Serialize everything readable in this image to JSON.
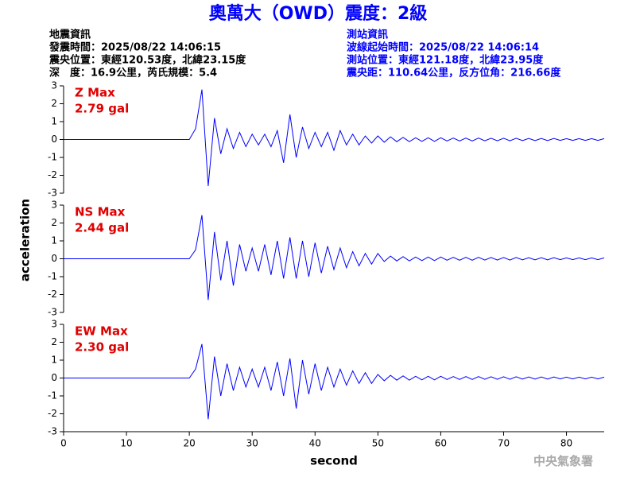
{
  "header": {
    "title": "奧萬大（OWD）震度：2級",
    "left": [
      "地震資訊",
      "發震時間：2025/08/22 14:06:15",
      "震央位置：東經120.53度，北緯23.15度",
      "深　度：16.9公里，芮氏規模：5.4"
    ],
    "right": [
      "測站資訊",
      "波線起始時間：2025/08/22 14:06:14",
      "測站位置：東經121.18度，北緯23.95度",
      "震央距：110.64公里，反方位角：216.66度"
    ],
    "footer": "中央氣象署"
  },
  "chart_data": [
    {
      "type": "line",
      "annotation": [
        "Z Max",
        "2.79 gal"
      ],
      "color": "#0000ff",
      "xlim": [
        0,
        86
      ],
      "ylim": [
        -3,
        3
      ],
      "yticks": [
        -3,
        -2,
        -1,
        0,
        1,
        2,
        3
      ],
      "x": [
        0,
        1,
        2,
        3,
        4,
        5,
        6,
        7,
        8,
        9,
        10,
        11,
        12,
        13,
        14,
        15,
        16,
        17,
        18,
        19,
        20,
        21,
        22,
        23,
        24,
        25,
        26,
        27,
        28,
        29,
        30,
        31,
        32,
        33,
        34,
        35,
        36,
        37,
        38,
        39,
        40,
        41,
        42,
        43,
        44,
        45,
        46,
        47,
        48,
        49,
        50,
        51,
        52,
        53,
        54,
        55,
        56,
        57,
        58,
        59,
        60,
        61,
        62,
        63,
        64,
        65,
        66,
        67,
        68,
        69,
        70,
        71,
        72,
        73,
        74,
        75,
        76,
        77,
        78,
        79,
        80,
        81,
        82,
        83,
        84,
        85,
        86
      ],
      "values": [
        0,
        0,
        0,
        0,
        0,
        0,
        0,
        0,
        0,
        0,
        0,
        0,
        0,
        0,
        0,
        0,
        0,
        0,
        0,
        0,
        0,
        0.6,
        2.79,
        -2.6,
        1.2,
        -0.8,
        0.6,
        -0.5,
        0.4,
        -0.4,
        0.3,
        -0.3,
        0.3,
        -0.4,
        0.5,
        -1.3,
        1.4,
        -1.0,
        0.7,
        -0.5,
        0.4,
        -0.4,
        0.4,
        -0.6,
        0.5,
        -0.3,
        0.3,
        -0.3,
        0.2,
        -0.2,
        0.2,
        -0.15,
        0.15,
        -0.12,
        0.12,
        -0.12,
        0.1,
        -0.1,
        0.1,
        -0.1,
        0.1,
        -0.08,
        0.08,
        -0.08,
        0.08,
        -0.08,
        0.08,
        -0.07,
        0.07,
        -0.07,
        0.07,
        -0.07,
        0.07,
        -0.06,
        0.06,
        -0.06,
        0.06,
        -0.06,
        0.06,
        -0.05,
        0.05,
        -0.05,
        0.05,
        -0.05,
        0.05,
        -0.05,
        0.05
      ]
    },
    {
      "type": "line",
      "annotation": [
        "NS Max",
        "2.44 gal"
      ],
      "color": "#0000ff",
      "ylabel": "acceleration",
      "xlim": [
        0,
        86
      ],
      "ylim": [
        -3,
        3
      ],
      "yticks": [
        -3,
        -2,
        -1,
        0,
        1,
        2,
        3
      ],
      "x": [
        0,
        1,
        2,
        3,
        4,
        5,
        6,
        7,
        8,
        9,
        10,
        11,
        12,
        13,
        14,
        15,
        16,
        17,
        18,
        19,
        20,
        21,
        22,
        23,
        24,
        25,
        26,
        27,
        28,
        29,
        30,
        31,
        32,
        33,
        34,
        35,
        36,
        37,
        38,
        39,
        40,
        41,
        42,
        43,
        44,
        45,
        46,
        47,
        48,
        49,
        50,
        51,
        52,
        53,
        54,
        55,
        56,
        57,
        58,
        59,
        60,
        61,
        62,
        63,
        64,
        65,
        66,
        67,
        68,
        69,
        70,
        71,
        72,
        73,
        74,
        75,
        76,
        77,
        78,
        79,
        80,
        81,
        82,
        83,
        84,
        85,
        86
      ],
      "values": [
        0,
        0,
        0,
        0,
        0,
        0,
        0,
        0,
        0,
        0,
        0,
        0,
        0,
        0,
        0,
        0,
        0,
        0,
        0,
        0,
        0,
        0.5,
        2.44,
        -2.3,
        1.5,
        -1.2,
        1.0,
        -1.5,
        0.8,
        -0.7,
        0.6,
        -0.7,
        0.8,
        -0.9,
        1.0,
        -1.1,
        1.2,
        -1.1,
        1.0,
        -1.0,
        0.9,
        -0.8,
        0.7,
        -0.6,
        0.6,
        -0.5,
        0.4,
        -0.4,
        0.3,
        -0.3,
        0.3,
        -0.15,
        0.15,
        -0.12,
        0.12,
        -0.12,
        0.1,
        -0.1,
        0.1,
        -0.1,
        0.1,
        -0.08,
        0.08,
        -0.08,
        0.08,
        -0.08,
        0.08,
        -0.07,
        0.07,
        -0.07,
        0.07,
        -0.07,
        0.07,
        -0.06,
        0.06,
        -0.06,
        0.06,
        -0.06,
        0.06,
        -0.05,
        0.05,
        -0.05,
        0.05,
        -0.05,
        0.05,
        -0.05,
        0.05
      ]
    },
    {
      "type": "line",
      "annotation": [
        "EW Max",
        "2.30 gal"
      ],
      "color": "#0000ff",
      "xlabel": "second",
      "xlim": [
        0,
        86
      ],
      "xticks": [
        0,
        10,
        20,
        30,
        40,
        50,
        60,
        70,
        80
      ],
      "ylim": [
        -3,
        3
      ],
      "yticks": [
        -3,
        -2,
        -1,
        0,
        1,
        2,
        3
      ],
      "x": [
        0,
        1,
        2,
        3,
        4,
        5,
        6,
        7,
        8,
        9,
        10,
        11,
        12,
        13,
        14,
        15,
        16,
        17,
        18,
        19,
        20,
        21,
        22,
        23,
        24,
        25,
        26,
        27,
        28,
        29,
        30,
        31,
        32,
        33,
        34,
        35,
        36,
        37,
        38,
        39,
        40,
        41,
        42,
        43,
        44,
        45,
        46,
        47,
        48,
        49,
        50,
        51,
        52,
        53,
        54,
        55,
        56,
        57,
        58,
        59,
        60,
        61,
        62,
        63,
        64,
        65,
        66,
        67,
        68,
        69,
        70,
        71,
        72,
        73,
        74,
        75,
        76,
        77,
        78,
        79,
        80,
        81,
        82,
        83,
        84,
        85,
        86
      ],
      "values": [
        0,
        0,
        0,
        0,
        0,
        0,
        0,
        0,
        0,
        0,
        0,
        0,
        0,
        0,
        0,
        0,
        0,
        0,
        0,
        0,
        0,
        0.5,
        1.9,
        -2.3,
        1.2,
        -1.0,
        0.8,
        -0.7,
        0.6,
        -0.5,
        0.5,
        -0.5,
        0.6,
        -0.7,
        0.9,
        -1.0,
        1.1,
        -1.7,
        1.0,
        -0.9,
        0.8,
        -0.7,
        0.6,
        -0.5,
        0.5,
        -0.4,
        0.4,
        -0.3,
        0.3,
        -0.3,
        0.2,
        -0.15,
        0.15,
        -0.12,
        0.12,
        -0.12,
        0.1,
        -0.1,
        0.1,
        -0.1,
        0.1,
        -0.08,
        0.08,
        -0.08,
        0.08,
        -0.08,
        0.08,
        -0.07,
        0.07,
        -0.07,
        0.07,
        -0.07,
        0.07,
        -0.06,
        0.06,
        -0.06,
        0.06,
        -0.06,
        0.06,
        -0.05,
        0.05,
        -0.05,
        0.05,
        -0.05,
        0.05,
        -0.05,
        0.05
      ]
    }
  ]
}
